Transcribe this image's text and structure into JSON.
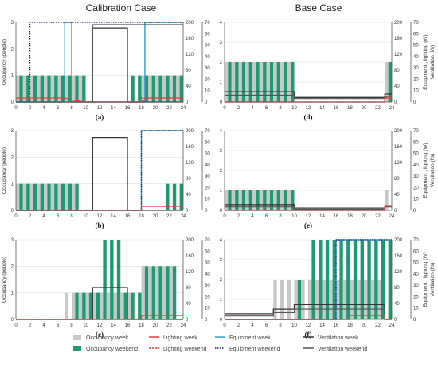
{
  "column_titles": [
    "Calibration Case",
    "Base Case"
  ],
  "colors": {
    "occ_week": "#c8c8c8",
    "occ_weekend": "#1e9a72",
    "lighting": "#e83c3c",
    "equipment": "#2c9fd0",
    "equipment_weekend": "#1a2a6e",
    "ventilation_week": "#333333",
    "ventilation_weekend": "#555555"
  },
  "legend": {
    "occ_week": "Occupancy week",
    "occ_weekend": "Occupancy weekend",
    "light_week": "Lighting week",
    "light_weekend": "Lighting weekend",
    "equip_week": "Equipment week",
    "equip_weekend": "Equipment weekend",
    "vent_week": "Ventilation week",
    "vent_weekend": "Ventilation weekend"
  },
  "chart_data": [
    {
      "type": "bar",
      "panel": "(a)",
      "column": 0,
      "xlim": [
        0,
        24
      ],
      "ylim": [
        0,
        3
      ],
      "y2lim": [
        0,
        200
      ],
      "y3lim": [
        0,
        70
      ],
      "ylabel": "Occupancy (people)",
      "occupancy_weekday": [
        1,
        1,
        1,
        1,
        1,
        1,
        1,
        1,
        1,
        1,
        0,
        0,
        0,
        0,
        0,
        0,
        0,
        0,
        1,
        1,
        1,
        1,
        1,
        1
      ],
      "occupancy_weekend": [
        1,
        1,
        1,
        1,
        1,
        1,
        1,
        1,
        1,
        1,
        0,
        0,
        0,
        0,
        0,
        0,
        1,
        1,
        1,
        1,
        1,
        1,
        1,
        1
      ],
      "lighting_week": [
        [
          0,
          10
        ],
        [
          7,
          10
        ],
        [
          8,
          5
        ],
        [
          10,
          0
        ],
        [
          18,
          0
        ],
        [
          19,
          10
        ],
        [
          24,
          10
        ]
      ],
      "lighting_weekend": [
        [
          0,
          5
        ],
        [
          2,
          5
        ],
        [
          2,
          0
        ],
        [
          18,
          0
        ],
        [
          18,
          10
        ],
        [
          24,
          10
        ]
      ],
      "equipment_week": [
        [
          0,
          0
        ],
        [
          7,
          0
        ],
        [
          7,
          200
        ],
        [
          8,
          200
        ],
        [
          8,
          0
        ],
        [
          18.5,
          0
        ],
        [
          18.5,
          200
        ],
        [
          24,
          200
        ]
      ],
      "equipment_weekend": [
        [
          0,
          0
        ],
        [
          2,
          0
        ],
        [
          2,
          200
        ],
        [
          24,
          200
        ]
      ],
      "ventilation_week": [
        [
          0,
          0
        ],
        [
          11,
          0
        ],
        [
          11,
          65
        ],
        [
          16,
          65
        ],
        [
          16,
          0
        ],
        [
          24,
          0
        ]
      ],
      "ventilation_weekend": [
        [
          0,
          0
        ],
        [
          11,
          0
        ],
        [
          11,
          68
        ],
        [
          24,
          68
        ]
      ]
    },
    {
      "type": "bar",
      "panel": "(b)",
      "column": 0,
      "xlim": [
        0,
        24
      ],
      "ylim": [
        0,
        3
      ],
      "y2lim": [
        0,
        200
      ],
      "y3lim": [
        0,
        70
      ],
      "ylabel": "Occupancy (people)",
      "occupancy_weekday": [
        1,
        1,
        1,
        1,
        1,
        1,
        1,
        1,
        1,
        0,
        0,
        0,
        0,
        0,
        0,
        0,
        0,
        0,
        0,
        0,
        0,
        0,
        0,
        0
      ],
      "occupancy_weekend": [
        1,
        1,
        1,
        1,
        1,
        1,
        1,
        1,
        1,
        0,
        0,
        0,
        0,
        0,
        0,
        0,
        0,
        0,
        0,
        0,
        0,
        1,
        1,
        1
      ],
      "lighting_week": [
        [
          0,
          0
        ],
        [
          18,
          0
        ],
        [
          18,
          10
        ],
        [
          24,
          10
        ]
      ],
      "lighting_weekend": [
        [
          0,
          0
        ],
        [
          18,
          0
        ],
        [
          18,
          10
        ],
        [
          24,
          10
        ]
      ],
      "equipment_week": [
        [
          0,
          0
        ],
        [
          18,
          0
        ],
        [
          18,
          200
        ],
        [
          24,
          200
        ]
      ],
      "equipment_weekend": [
        [
          0,
          0
        ],
        [
          18,
          0
        ],
        [
          18,
          200
        ],
        [
          24,
          200
        ]
      ],
      "ventilation_week": [
        [
          0,
          0
        ],
        [
          11,
          0
        ],
        [
          11,
          64
        ],
        [
          16,
          64
        ],
        [
          16,
          0
        ],
        [
          24,
          0
        ]
      ],
      "ventilation_weekend": []
    },
    {
      "type": "bar",
      "panel": "(c)",
      "column": 0,
      "xlim": [
        0,
        24
      ],
      "ylim": [
        0,
        3
      ],
      "y2lim": [
        0,
        200
      ],
      "y3lim": [
        0,
        70
      ],
      "ylabel": "Occupancy (people)",
      "occupancy_weekday": [
        0,
        0,
        0,
        0,
        0,
        0,
        0,
        1,
        1,
        1,
        1,
        1,
        1,
        1,
        1,
        1,
        1,
        0,
        2,
        2,
        2,
        2,
        2,
        0
      ],
      "occupancy_weekend": [
        0,
        0,
        0,
        0,
        0,
        0,
        0,
        0,
        1,
        1,
        1,
        1,
        3,
        3,
        3,
        1,
        1,
        1,
        2,
        2,
        2,
        2,
        2,
        0
      ],
      "lighting_week": [
        [
          0,
          0
        ],
        [
          18,
          0
        ],
        [
          18,
          10
        ],
        [
          24,
          10
        ]
      ],
      "lighting_weekend": [
        [
          0,
          0
        ],
        [
          18,
          0
        ],
        [
          18,
          10
        ],
        [
          24,
          10
        ]
      ],
      "equipment_week": [],
      "equipment_weekend": [],
      "ventilation_week": [
        [
          0,
          0
        ],
        [
          11,
          0
        ],
        [
          11,
          28
        ],
        [
          16,
          28
        ],
        [
          16,
          0
        ],
        [
          24,
          0
        ]
      ],
      "ventilation_weekend": []
    },
    {
      "type": "bar",
      "panel": "(d)",
      "column": 1,
      "xlim": [
        0,
        24
      ],
      "ylim": [
        0,
        4
      ],
      "y2lim": [
        0,
        200
      ],
      "y3lim": [
        0,
        70
      ],
      "y2label": "Equipment , lighting (W)",
      "y3label": "Ventilation (l/s)",
      "occupancy_weekday": [
        2,
        2,
        2,
        2,
        2,
        2,
        2,
        2,
        2,
        2,
        0,
        0,
        0,
        0,
        0,
        0,
        0,
        0,
        0,
        0,
        0,
        0,
        0,
        2
      ],
      "occupancy_weekend": [
        2,
        2,
        2,
        2,
        2,
        2,
        2,
        2,
        2,
        2,
        0,
        0,
        0,
        0,
        0,
        0,
        0,
        0,
        0,
        0,
        0,
        0,
        0,
        2
      ],
      "lighting_week": [
        [
          0,
          0
        ],
        [
          23,
          0
        ],
        [
          23,
          10
        ],
        [
          24,
          10
        ]
      ],
      "lighting_weekend": [
        [
          0,
          0
        ],
        [
          23,
          0
        ],
        [
          23,
          12
        ],
        [
          24,
          12
        ]
      ],
      "equipment_week": [],
      "equipment_weekend": [],
      "ventilation_week": [
        [
          0,
          9
        ],
        [
          10,
          9
        ],
        [
          10,
          4
        ],
        [
          23,
          4
        ],
        [
          23,
          7
        ],
        [
          24,
          7
        ]
      ],
      "ventilation_weekend": [
        [
          0,
          6
        ],
        [
          10,
          6
        ],
        [
          10,
          3
        ],
        [
          23,
          3
        ],
        [
          23,
          5
        ],
        [
          24,
          5
        ]
      ]
    },
    {
      "type": "bar",
      "panel": "(e)",
      "column": 1,
      "xlim": [
        0,
        24
      ],
      "ylim": [
        0,
        4
      ],
      "y2lim": [
        0,
        200
      ],
      "y3lim": [
        0,
        70
      ],
      "y2label": "Equipment , lighting (W)",
      "y3label": "Ventilation (l/s)",
      "occupancy_weekday": [
        1,
        1,
        1,
        1,
        1,
        1,
        1,
        1,
        1,
        1,
        0,
        0,
        0,
        0,
        0,
        0,
        0,
        0,
        0,
        0,
        0,
        0,
        0,
        1
      ],
      "occupancy_weekend": [
        1,
        1,
        1,
        1,
        1,
        1,
        1,
        1,
        1,
        1,
        0,
        0,
        0,
        0,
        0,
        0,
        0,
        0,
        0,
        0,
        0,
        0,
        0,
        0
      ],
      "lighting_week": [
        [
          0,
          0
        ],
        [
          23,
          0
        ],
        [
          23,
          10
        ],
        [
          24,
          10
        ]
      ],
      "lighting_weekend": [
        [
          0,
          0
        ],
        [
          23,
          0
        ],
        [
          23,
          12
        ],
        [
          24,
          12
        ]
      ],
      "equipment_week": [],
      "equipment_weekend": [],
      "ventilation_week": [
        [
          0,
          5
        ],
        [
          10,
          5
        ],
        [
          10,
          2
        ],
        [
          23,
          2
        ],
        [
          23,
          4
        ],
        [
          24,
          4
        ]
      ],
      "ventilation_weekend": [
        [
          0,
          3
        ],
        [
          10,
          3
        ],
        [
          10,
          1
        ],
        [
          23,
          1
        ],
        [
          23,
          3
        ],
        [
          24,
          3
        ]
      ]
    },
    {
      "type": "bar",
      "panel": "(f)",
      "column": 1,
      "xlim": [
        0,
        24
      ],
      "ylim": [
        0,
        4
      ],
      "y2lim": [
        0,
        200
      ],
      "y3lim": [
        0,
        70
      ],
      "y2label": "Equipment , lighting (W)",
      "y3label": "Ventilation (l/s)",
      "occupancy_weekday": [
        0,
        0,
        0,
        0,
        0,
        0,
        0,
        2,
        2,
        2,
        2,
        2,
        2,
        2,
        2,
        2,
        2,
        2,
        2,
        2,
        2,
        2,
        2,
        0
      ],
      "occupancy_weekend": [
        0,
        0,
        0,
        0,
        0,
        0,
        0,
        0,
        0,
        0,
        2,
        0,
        4,
        4,
        4,
        4,
        4,
        4,
        4,
        4,
        4,
        4,
        4,
        4
      ],
      "lighting_week": [
        [
          0,
          0
        ],
        [
          18,
          0
        ],
        [
          18,
          10
        ],
        [
          23,
          10
        ],
        [
          23,
          0
        ],
        [
          24,
          0
        ]
      ],
      "lighting_weekend": [
        [
          0,
          0
        ],
        [
          18,
          0
        ],
        [
          18,
          10
        ],
        [
          23,
          10
        ],
        [
          23,
          0
        ],
        [
          24,
          0
        ]
      ],
      "equipment_week": [
        [
          0,
          0
        ],
        [
          16,
          0
        ],
        [
          16,
          200
        ],
        [
          24,
          200
        ]
      ],
      "equipment_weekend": [
        [
          0,
          0
        ],
        [
          16,
          0
        ],
        [
          16,
          200
        ],
        [
          24,
          200
        ]
      ],
      "ventilation_week": [
        [
          0,
          5
        ],
        [
          7,
          5
        ],
        [
          7,
          9
        ],
        [
          10,
          9
        ],
        [
          10,
          13
        ],
        [
          23,
          13
        ],
        [
          23,
          0
        ],
        [
          24,
          0
        ]
      ],
      "ventilation_weekend": [
        [
          0,
          3
        ],
        [
          7,
          3
        ],
        [
          7,
          6
        ],
        [
          10,
          6
        ],
        [
          10,
          9
        ],
        [
          23,
          9
        ],
        [
          23,
          0
        ],
        [
          24,
          0
        ]
      ]
    }
  ]
}
